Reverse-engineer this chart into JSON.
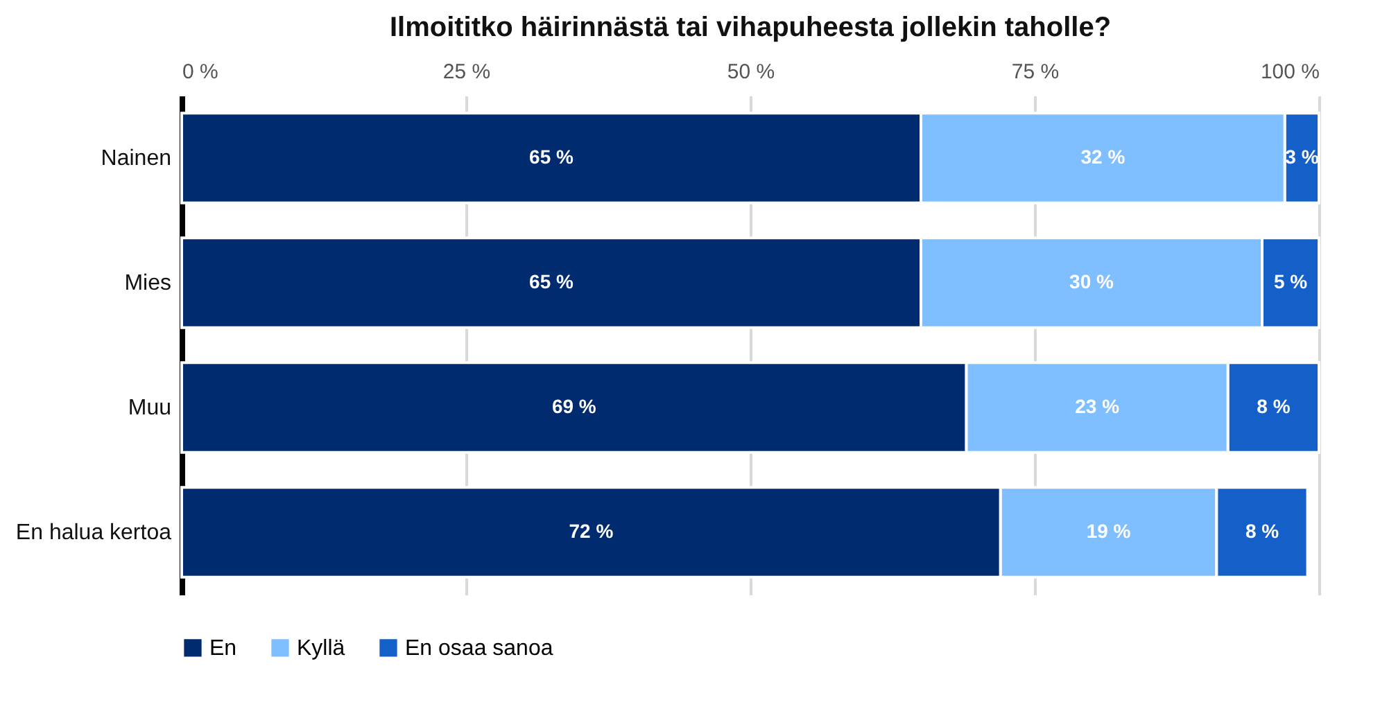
{
  "chart_data": {
    "type": "bar",
    "orientation": "horizontal",
    "stacked": true,
    "title": "Ilmoititko häirinnästä tai vihapuheesta jollekin taholle?",
    "categories": [
      "Nainen",
      "Mies",
      "Muu",
      "En halua kertoa"
    ],
    "series": [
      {
        "name": "En",
        "color": "#002b6e",
        "values": [
          65,
          65,
          69,
          72
        ],
        "value_labels": [
          "65 %",
          "65 %",
          "69 %",
          "72 %"
        ]
      },
      {
        "name": "Kyllä",
        "color": "#7fbfff",
        "values": [
          32,
          30,
          23,
          19
        ],
        "value_labels": [
          "32 %",
          "30 %",
          "23 %",
          "19 %"
        ]
      },
      {
        "name": "En osaa sanoa",
        "color": "#1560c8",
        "values": [
          3,
          5,
          8,
          8
        ],
        "value_labels": [
          "3 %",
          "5 %",
          "8 %",
          "8 %"
        ]
      }
    ],
    "xlim": [
      0,
      100
    ],
    "xticks": [
      {
        "value": 0,
        "label": "0 %"
      },
      {
        "value": 25,
        "label": "25 %"
      },
      {
        "value": 50,
        "label": "50 %"
      },
      {
        "value": 75,
        "label": "75 %"
      },
      {
        "value": 100,
        "label": "100 %"
      }
    ],
    "grid": "x",
    "legend": "bottom"
  }
}
